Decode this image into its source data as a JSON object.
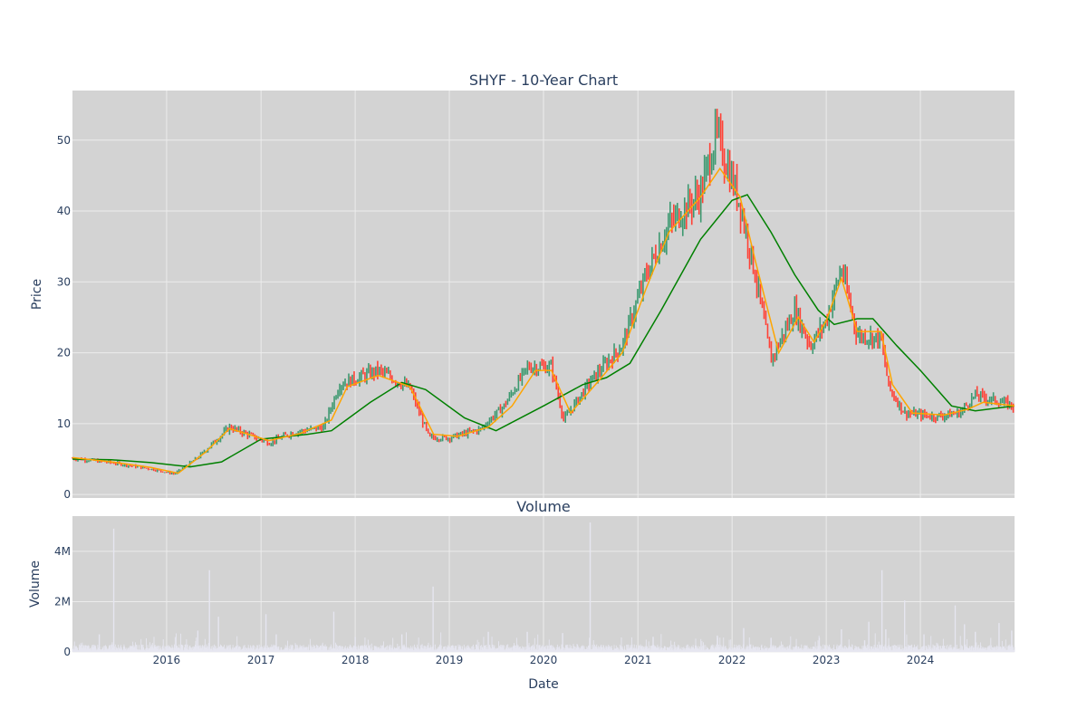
{
  "chart_data": [
    {
      "type": "candlestick",
      "title": "SHYF - 10-Year Chart",
      "xlabel": "",
      "ylabel": "Price",
      "ylim": [
        -0.5,
        57
      ],
      "yticks": [
        0,
        10,
        20,
        30,
        40,
        50
      ],
      "x_range": [
        "2015-01-01",
        "2024-12-31"
      ],
      "xticks": [
        "2016",
        "2017",
        "2018",
        "2019",
        "2020",
        "2021",
        "2022",
        "2023",
        "2024"
      ],
      "grid": true,
      "legend": "none",
      "colors": {
        "plot_bg": "#d3d3d3",
        "grid": "#ececec",
        "increasing": "#3d9970",
        "decreasing": "#ff4136",
        "ma_fast": "#ffa500",
        "ma_slow": "#008000",
        "text": "#2a3f5f"
      },
      "price_path": [
        {
          "x": "2015-01-01",
          "y": 5.1
        },
        {
          "x": "2015-06-01",
          "y": 4.5
        },
        {
          "x": "2015-11-01",
          "y": 3.6
        },
        {
          "x": "2016-02-01",
          "y": 2.9
        },
        {
          "x": "2016-05-01",
          "y": 5.2
        },
        {
          "x": "2016-09-01",
          "y": 9.5
        },
        {
          "x": "2017-02-01",
          "y": 7.3
        },
        {
          "x": "2017-05-01",
          "y": 8.7
        },
        {
          "x": "2017-09-01",
          "y": 9.5
        },
        {
          "x": "2017-11-01",
          "y": 15.5
        },
        {
          "x": "2018-04-01",
          "y": 17.5
        },
        {
          "x": "2018-08-01",
          "y": 15.0
        },
        {
          "x": "2018-10-15",
          "y": 8.0
        },
        {
          "x": "2019-01-01",
          "y": 8.0
        },
        {
          "x": "2019-05-01",
          "y": 9.2
        },
        {
          "x": "2019-08-01",
          "y": 12.5
        },
        {
          "x": "2019-11-01",
          "y": 18.0
        },
        {
          "x": "2020-02-01",
          "y": 18.0
        },
        {
          "x": "2020-03-20",
          "y": 10.5
        },
        {
          "x": "2020-07-01",
          "y": 16.0
        },
        {
          "x": "2020-11-01",
          "y": 21.0
        },
        {
          "x": "2021-02-01",
          "y": 31.0
        },
        {
          "x": "2021-05-01",
          "y": 38.0
        },
        {
          "x": "2021-09-01",
          "y": 42.5
        },
        {
          "x": "2021-11-01",
          "y": 51.0
        },
        {
          "x": "2022-02-01",
          "y": 41.0
        },
        {
          "x": "2022-04-01",
          "y": 31.0
        },
        {
          "x": "2022-06-01",
          "y": 19.0
        },
        {
          "x": "2022-09-01",
          "y": 26.0
        },
        {
          "x": "2022-11-01",
          "y": 21.0
        },
        {
          "x": "2023-01-01",
          "y": 24.5
        },
        {
          "x": "2023-03-01",
          "y": 32.0
        },
        {
          "x": "2023-05-01",
          "y": 22.5
        },
        {
          "x": "2023-08-01",
          "y": 22.0
        },
        {
          "x": "2023-09-01",
          "y": 15.0
        },
        {
          "x": "2023-11-01",
          "y": 11.5
        },
        {
          "x": "2024-03-01",
          "y": 11.0
        },
        {
          "x": "2024-06-01",
          "y": 11.5
        },
        {
          "x": "2024-08-01",
          "y": 14.0
        },
        {
          "x": "2024-12-31",
          "y": 12.5
        }
      ],
      "moving_average_slow": [
        {
          "x": "2015-01-01",
          "y": 5.0
        },
        {
          "x": "2015-06-01",
          "y": 4.9
        },
        {
          "x": "2015-11-01",
          "y": 4.5
        },
        {
          "x": "2016-04-01",
          "y": 3.9
        },
        {
          "x": "2016-08-01",
          "y": 4.6
        },
        {
          "x": "2017-01-01",
          "y": 7.8
        },
        {
          "x": "2017-07-01",
          "y": 8.5
        },
        {
          "x": "2017-10-01",
          "y": 9.0
        },
        {
          "x": "2018-03-01",
          "y": 13.0
        },
        {
          "x": "2018-07-01",
          "y": 15.8
        },
        {
          "x": "2018-10-01",
          "y": 14.8
        },
        {
          "x": "2019-03-01",
          "y": 10.8
        },
        {
          "x": "2019-07-01",
          "y": 9.0
        },
        {
          "x": "2020-01-01",
          "y": 12.5
        },
        {
          "x": "2020-06-01",
          "y": 15.5
        },
        {
          "x": "2020-09-01",
          "y": 16.5
        },
        {
          "x": "2020-12-01",
          "y": 18.5
        },
        {
          "x": "2021-04-01",
          "y": 26.0
        },
        {
          "x": "2021-09-01",
          "y": 36.0
        },
        {
          "x": "2022-01-01",
          "y": 41.5
        },
        {
          "x": "2022-03-01",
          "y": 42.3
        },
        {
          "x": "2022-06-01",
          "y": 37.0
        },
        {
          "x": "2022-09-01",
          "y": 31.0
        },
        {
          "x": "2022-12-01",
          "y": 26.0
        },
        {
          "x": "2023-02-01",
          "y": 24.0
        },
        {
          "x": "2023-05-01",
          "y": 24.8
        },
        {
          "x": "2023-07-01",
          "y": 24.8
        },
        {
          "x": "2023-10-01",
          "y": 21.0
        },
        {
          "x": "2024-01-01",
          "y": 17.5
        },
        {
          "x": "2024-05-01",
          "y": 12.5
        },
        {
          "x": "2024-08-01",
          "y": 11.8
        },
        {
          "x": "2024-12-31",
          "y": 12.5
        }
      ],
      "moving_average_fast": [
        {
          "x": "2015-01-01",
          "y": 5.2
        },
        {
          "x": "2015-06-01",
          "y": 4.6
        },
        {
          "x": "2015-11-01",
          "y": 3.8
        },
        {
          "x": "2016-02-15",
          "y": 3.0
        },
        {
          "x": "2016-06-01",
          "y": 6.0
        },
        {
          "x": "2016-09-01",
          "y": 9.3
        },
        {
          "x": "2017-02-01",
          "y": 7.6
        },
        {
          "x": "2017-06-01",
          "y": 8.6
        },
        {
          "x": "2017-10-01",
          "y": 10.5
        },
        {
          "x": "2017-12-01",
          "y": 15.2
        },
        {
          "x": "2018-04-01",
          "y": 16.8
        },
        {
          "x": "2018-08-01",
          "y": 15.2
        },
        {
          "x": "2018-11-01",
          "y": 8.5
        },
        {
          "x": "2019-02-01",
          "y": 8.2
        },
        {
          "x": "2019-06-01",
          "y": 9.5
        },
        {
          "x": "2019-09-01",
          "y": 12.5
        },
        {
          "x": "2019-12-01",
          "y": 17.5
        },
        {
          "x": "2020-02-01",
          "y": 17.5
        },
        {
          "x": "2020-04-15",
          "y": 11.5
        },
        {
          "x": "2020-08-01",
          "y": 16.0
        },
        {
          "x": "2020-11-01",
          "y": 20.0
        },
        {
          "x": "2021-02-01",
          "y": 29.0
        },
        {
          "x": "2021-05-01",
          "y": 37.0
        },
        {
          "x": "2021-09-01",
          "y": 42.0
        },
        {
          "x": "2021-11-15",
          "y": 46.0
        },
        {
          "x": "2022-02-01",
          "y": 42.0
        },
        {
          "x": "2022-04-01",
          "y": 33.0
        },
        {
          "x": "2022-07-01",
          "y": 20.0
        },
        {
          "x": "2022-09-15",
          "y": 25.0
        },
        {
          "x": "2022-11-15",
          "y": 21.5
        },
        {
          "x": "2023-01-01",
          "y": 24.5
        },
        {
          "x": "2023-03-01",
          "y": 30.5
        },
        {
          "x": "2023-05-01",
          "y": 23.0
        },
        {
          "x": "2023-08-01",
          "y": 23.0
        },
        {
          "x": "2023-09-15",
          "y": 15.5
        },
        {
          "x": "2023-12-01",
          "y": 11.5
        },
        {
          "x": "2024-04-01",
          "y": 11.2
        },
        {
          "x": "2024-07-01",
          "y": 12.0
        },
        {
          "x": "2024-09-01",
          "y": 13.0
        },
        {
          "x": "2024-12-31",
          "y": 12.5
        }
      ]
    },
    {
      "type": "bar",
      "title": "Volume",
      "xlabel": "Date",
      "ylabel": "Volume",
      "ylim": [
        0,
        5400000
      ],
      "yticks": [
        0,
        2000000,
        4000000
      ],
      "ytick_labels": [
        "0",
        "2M",
        "4M"
      ],
      "xticks": [
        "2016",
        "2017",
        "2018",
        "2019",
        "2020",
        "2021",
        "2022",
        "2023",
        "2024"
      ],
      "color": "#e6e6f0",
      "baseline": 150000,
      "spikes": [
        {
          "x": "2015-04-15",
          "y": 700000
        },
        {
          "x": "2015-06-10",
          "y": 4900000
        },
        {
          "x": "2016-02-01",
          "y": 300000
        },
        {
          "x": "2016-05-01",
          "y": 850000
        },
        {
          "x": "2016-06-15",
          "y": 3250000
        },
        {
          "x": "2016-07-20",
          "y": 1400000
        },
        {
          "x": "2017-01-20",
          "y": 1500000
        },
        {
          "x": "2017-03-01",
          "y": 700000
        },
        {
          "x": "2017-10-10",
          "y": 1600000
        },
        {
          "x": "2018-01-01",
          "y": 600000
        },
        {
          "x": "2018-07-01",
          "y": 700000
        },
        {
          "x": "2018-10-30",
          "y": 2600000
        },
        {
          "x": "2019-06-01",
          "y": 800000
        },
        {
          "x": "2019-10-30",
          "y": 800000
        },
        {
          "x": "2020-03-15",
          "y": 750000
        },
        {
          "x": "2020-06-30",
          "y": 5150000
        },
        {
          "x": "2021-03-01",
          "y": 600000
        },
        {
          "x": "2021-11-05",
          "y": 650000
        },
        {
          "x": "2022-02-15",
          "y": 950000
        },
        {
          "x": "2022-06-01",
          "y": 550000
        },
        {
          "x": "2023-03-01",
          "y": 900000
        },
        {
          "x": "2023-06-15",
          "y": 1200000
        },
        {
          "x": "2023-08-05",
          "y": 3250000
        },
        {
          "x": "2023-08-20",
          "y": 900000
        },
        {
          "x": "2023-11-01",
          "y": 2050000
        },
        {
          "x": "2024-01-15",
          "y": 700000
        },
        {
          "x": "2024-05-15",
          "y": 1850000
        },
        {
          "x": "2024-06-20",
          "y": 1100000
        },
        {
          "x": "2024-08-01",
          "y": 800000
        },
        {
          "x": "2024-11-01",
          "y": 1150000
        },
        {
          "x": "2024-12-20",
          "y": 850000
        }
      ]
    }
  ]
}
